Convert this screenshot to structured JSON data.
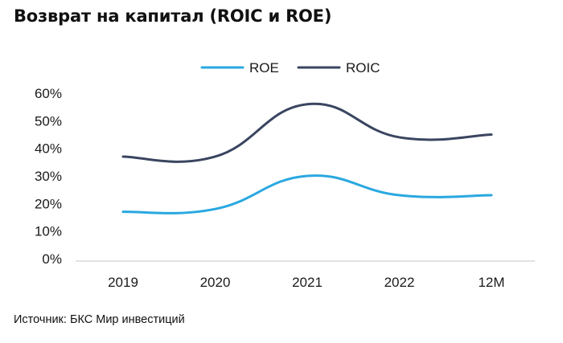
{
  "title": "Возврат на капитал (ROIC и ROE)",
  "source": "Источник: БКС Мир инвестиций",
  "chart_data": {
    "type": "line",
    "title": "Возврат на капитал (ROIC и ROE)",
    "categories": [
      "2019",
      "2020",
      "2021",
      "2022",
      "12M"
    ],
    "series": [
      {
        "name": "ROE",
        "color": "#29a8e0",
        "values": [
          17,
          18,
          30,
          23,
          23
        ]
      },
      {
        "name": "ROIC",
        "color": "#3a4560",
        "values": [
          37,
          37,
          56,
          44,
          45
        ]
      }
    ],
    "ylim": [
      0,
      60
    ],
    "yticks": [
      0,
      10,
      20,
      30,
      40,
      50,
      60
    ],
    "ytick_labels": [
      "0%",
      "10%",
      "20%",
      "30%",
      "40%",
      "50%",
      "60%"
    ],
    "grid": false,
    "legend": "top-center",
    "smooth": true
  }
}
